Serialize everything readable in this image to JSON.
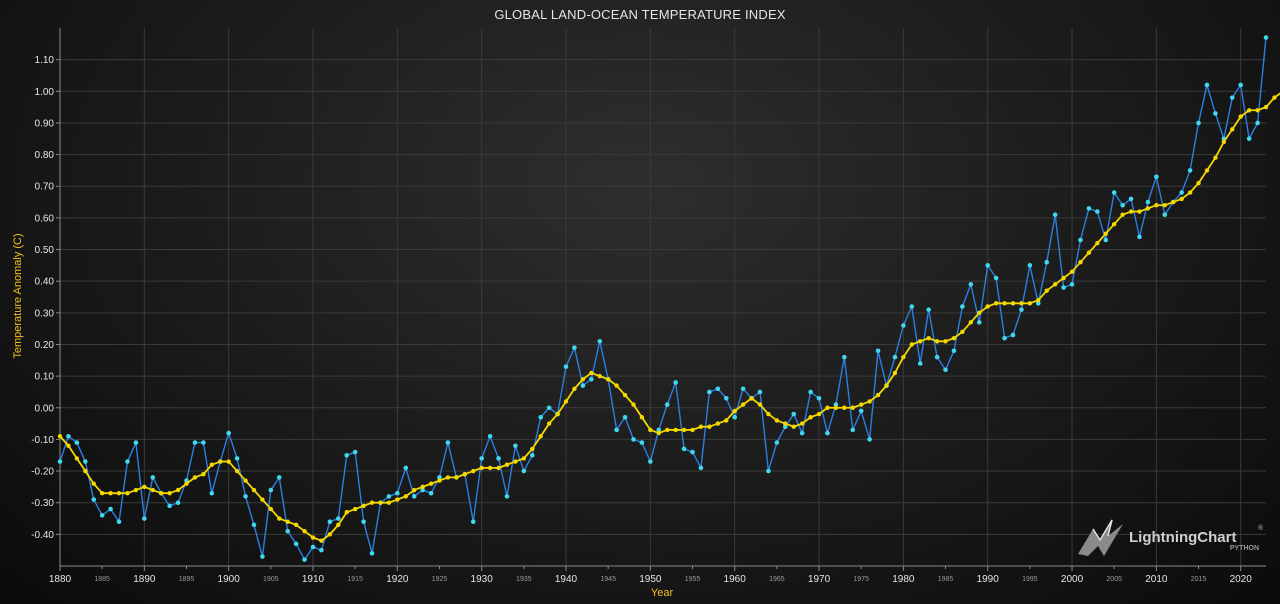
{
  "chart_data": {
    "type": "line",
    "title": "GLOBAL LAND-OCEAN TEMPERATURE INDEX",
    "xlabel": "Year",
    "ylabel": "Temperature Anomaly (C)",
    "xlim": [
      1880,
      2023
    ],
    "ylim": [
      -0.5,
      1.2
    ],
    "y_ticks": [
      "-0.40",
      "-0.30",
      "-0.20",
      "-0.10",
      "0.00",
      "0.10",
      "0.20",
      "0.30",
      "0.40",
      "0.50",
      "0.60",
      "0.70",
      "0.80",
      "0.90",
      "1.00",
      "1.10"
    ],
    "x_major_ticks": [
      "1880",
      "1890",
      "1900",
      "1910",
      "1920",
      "1930",
      "1940",
      "1950",
      "1960",
      "1970",
      "1980",
      "1990",
      "2000",
      "2010",
      "2020"
    ],
    "x_minor_ticks": [
      "1885",
      "1895",
      "1905",
      "1915",
      "1925",
      "1935",
      "1945",
      "1955",
      "1965",
      "1975",
      "1985",
      "1995",
      "2005",
      "2015"
    ],
    "grid": true,
    "x_start": 1880,
    "series": [
      {
        "color": "#2b7fe0",
        "marker_color": "#3fd8f0",
        "values": [
          -0.17,
          -0.09,
          -0.11,
          -0.17,
          -0.29,
          -0.34,
          -0.32,
          -0.36,
          -0.17,
          -0.11,
          -0.35,
          -0.22,
          -0.27,
          -0.31,
          -0.3,
          -0.23,
          -0.11,
          -0.11,
          -0.27,
          -0.17,
          -0.08,
          -0.16,
          -0.28,
          -0.37,
          -0.47,
          -0.26,
          -0.22,
          -0.39,
          -0.43,
          -0.48,
          -0.44,
          -0.45,
          -0.36,
          -0.35,
          -0.15,
          -0.14,
          -0.36,
          -0.46,
          -0.3,
          -0.28,
          -0.27,
          -0.19,
          -0.28,
          -0.26,
          -0.27,
          -0.22,
          -0.11,
          -0.22,
          -0.21,
          -0.36,
          -0.16,
          -0.09,
          -0.16,
          -0.28,
          -0.12,
          -0.2,
          -0.15,
          -0.03,
          -0.0,
          -0.02,
          0.13,
          0.19,
          0.07,
          0.09,
          0.21,
          0.09,
          -0.07,
          -0.03,
          -0.1,
          -0.11,
          -0.17,
          -0.07,
          0.01,
          0.08,
          -0.13,
          -0.14,
          -0.19,
          0.05,
          0.06,
          0.03,
          -0.03,
          0.06,
          0.03,
          0.05,
          -0.2,
          -0.11,
          -0.06,
          -0.02,
          -0.08,
          0.05,
          0.03,
          -0.08,
          0.01,
          0.16,
          -0.07,
          -0.01,
          -0.1,
          0.18,
          0.07,
          0.16,
          0.26,
          0.32,
          0.14,
          0.31,
          0.16,
          0.12,
          0.18,
          0.32,
          0.39,
          0.27,
          0.45,
          0.41,
          0.22,
          0.23,
          0.31,
          0.45,
          0.33,
          0.46,
          0.61,
          0.38,
          0.39,
          0.53,
          0.63,
          0.62,
          0.53,
          0.68,
          0.64,
          0.66,
          0.54,
          0.65,
          0.73,
          0.61,
          0.65,
          0.68,
          0.75,
          0.9,
          1.02,
          0.93,
          0.85,
          0.98,
          1.02,
          0.85,
          0.9,
          1.17
        ]
      },
      {
        "color": "#f5d800",
        "marker_color": "#f5d800",
        "values": [
          -0.09,
          -0.12,
          -0.16,
          -0.2,
          -0.24,
          -0.27,
          -0.27,
          -0.27,
          -0.27,
          -0.26,
          -0.25,
          -0.26,
          -0.27,
          -0.27,
          -0.26,
          -0.24,
          -0.22,
          -0.21,
          -0.18,
          -0.17,
          -0.17,
          -0.2,
          -0.23,
          -0.26,
          -0.29,
          -0.32,
          -0.35,
          -0.36,
          -0.37,
          -0.39,
          -0.41,
          -0.42,
          -0.4,
          -0.37,
          -0.33,
          -0.32,
          -0.31,
          -0.3,
          -0.3,
          -0.3,
          -0.29,
          -0.28,
          -0.26,
          -0.25,
          -0.24,
          -0.23,
          -0.22,
          -0.22,
          -0.21,
          -0.2,
          -0.19,
          -0.19,
          -0.19,
          -0.18,
          -0.17,
          -0.16,
          -0.13,
          -0.09,
          -0.05,
          -0.02,
          0.02,
          0.06,
          0.09,
          0.11,
          0.1,
          0.09,
          0.07,
          0.04,
          0.01,
          -0.03,
          -0.07,
          -0.08,
          -0.07,
          -0.07,
          -0.07,
          -0.07,
          -0.06,
          -0.06,
          -0.05,
          -0.04,
          -0.01,
          0.01,
          0.03,
          0.01,
          -0.02,
          -0.04,
          -0.05,
          -0.06,
          -0.05,
          -0.03,
          -0.02,
          0.0,
          0.0,
          0.0,
          0.0,
          0.01,
          0.02,
          0.04,
          0.07,
          0.11,
          0.16,
          0.2,
          0.21,
          0.22,
          0.21,
          0.21,
          0.22,
          0.24,
          0.27,
          0.3,
          0.32,
          0.33,
          0.33,
          0.33,
          0.33,
          0.33,
          0.34,
          0.37,
          0.39,
          0.41,
          0.43,
          0.46,
          0.49,
          0.52,
          0.55,
          0.58,
          0.61,
          0.62,
          0.62,
          0.63,
          0.64,
          0.64,
          0.65,
          0.66,
          0.68,
          0.71,
          0.75,
          0.79,
          0.84,
          0.88,
          0.92,
          0.94,
          0.94,
          0.95,
          0.98,
          1.0,
          1.02
        ]
      }
    ]
  },
  "logo": {
    "brand": "LightningChart",
    "mark": "®",
    "sub": "PYTHON"
  }
}
